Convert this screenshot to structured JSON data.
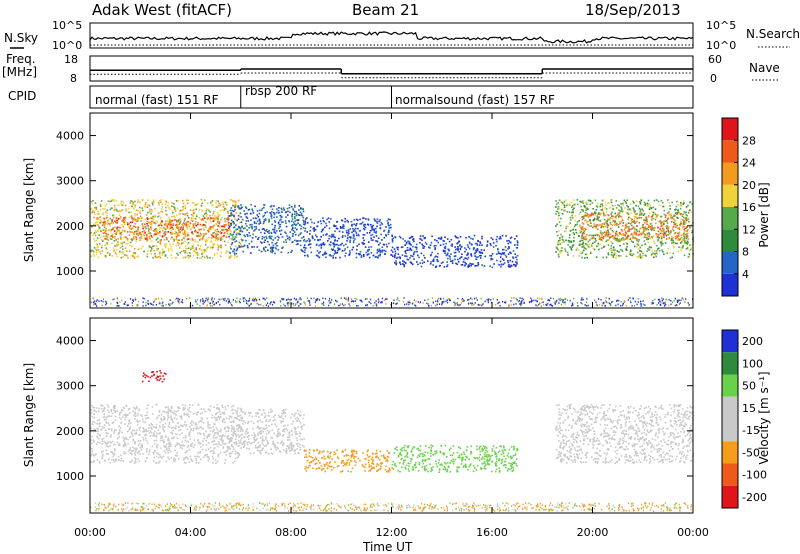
{
  "header": {
    "title": "Adak West (fitACF)",
    "beam": "Beam 21",
    "date": "18/Sep/2013"
  },
  "colors": {
    "power": [
      "#1f31d6",
      "#2466c7",
      "#2f8a3c",
      "#58a94c",
      "#f0d23a",
      "#f39a1f",
      "#ef5a1a",
      "#e0151b"
    ],
    "velocity": [
      "#e0151b",
      "#ef5a1a",
      "#f59d1b",
      "#c9c9c9",
      "#c9c9c9",
      "#6ad14a",
      "#2f8a3c",
      "#1f31d6"
    ]
  },
  "chart_data": [
    {
      "type": "line",
      "name": "summary",
      "left_labels": {
        "nsky": "N.Sky",
        "freq": "Freq.",
        "freq_unit": "[MHz]",
        "cpid": "CPID"
      },
      "right_labels": {
        "nsearch": "N.Search",
        "nave": "Nave"
      },
      "nsky_ticks": [
        "10^5",
        "10^0"
      ],
      "nsearch_ticks": [
        "10^5",
        "10^0"
      ],
      "freq_ticks": [
        "18",
        "8"
      ],
      "nave_ticks": [
        "60",
        "0"
      ],
      "freq_steps": [
        {
          "start": 0,
          "end": 6,
          "value": 12.3
        },
        {
          "start": 6,
          "end": 10,
          "value": 12.8
        },
        {
          "start": 10,
          "end": 18,
          "value": 10.9
        },
        {
          "start": 18,
          "end": 24,
          "value": 12.8
        }
      ],
      "cpid": [
        {
          "start": 0,
          "end": 6,
          "label": "normal (fast) 151 RF"
        },
        {
          "start": 6,
          "end": 12,
          "label": "rbsp 200 RF"
        },
        {
          "start": 12,
          "end": 24,
          "label": "normalsound (fast) 157 RF"
        }
      ]
    },
    {
      "type": "heatmap",
      "name": "power",
      "ylabel": "Slant Range [km]",
      "xlabel": "Time UT",
      "xlim": [
        0,
        24
      ],
      "ylim": [
        180,
        4500
      ],
      "yticks": [
        1000,
        2000,
        3000,
        4000
      ],
      "xticks": [
        "00:00",
        "04:00",
        "08:00",
        "12:00",
        "16:00",
        "20:00",
        "00:00"
      ],
      "colorbar": {
        "label": "Power [dB]",
        "ticks": [
          4,
          8,
          12,
          16,
          20,
          24,
          28
        ]
      },
      "regions": [
        {
          "t0": 0.0,
          "t1": 6.0,
          "r0": 1300,
          "r1": 2600,
          "level": 20
        },
        {
          "t0": 0.5,
          "t1": 5.5,
          "r0": 1700,
          "r1": 2200,
          "level": 27
        },
        {
          "t0": 5.5,
          "t1": 8.5,
          "r0": 1400,
          "r1": 2500,
          "level": 8
        },
        {
          "t0": 8.5,
          "t1": 12.0,
          "r0": 1300,
          "r1": 2200,
          "level": 6
        },
        {
          "t0": 12.0,
          "t1": 17.0,
          "r0": 1100,
          "r1": 1800,
          "level": 5
        },
        {
          "t0": 18.5,
          "t1": 24.0,
          "r0": 1300,
          "r1": 2600,
          "level": 16
        },
        {
          "t0": 19.5,
          "t1": 23.8,
          "r0": 1700,
          "r1": 2300,
          "level": 26
        }
      ]
    },
    {
      "type": "heatmap",
      "name": "velocity",
      "ylabel": "Slant Range [km]",
      "xlabel": "Time UT",
      "xlim": [
        0,
        24
      ],
      "ylim": [
        180,
        4500
      ],
      "yticks": [
        1000,
        2000,
        3000,
        4000
      ],
      "xticks": [
        "00:00",
        "04:00",
        "08:00",
        "12:00",
        "16:00",
        "20:00",
        "00:00"
      ],
      "colorbar": {
        "label": "Velocity [m s⁻¹]",
        "ticks": [
          "200",
          "100",
          "50",
          "15",
          "-15",
          "-50",
          "-100",
          "-200"
        ]
      },
      "regions": [
        {
          "t0": 0.0,
          "t1": 6.0,
          "r0": 1300,
          "r1": 2600,
          "level": 0
        },
        {
          "t0": 5.5,
          "t1": 8.5,
          "r0": 1500,
          "r1": 2500,
          "level": 0
        },
        {
          "t0": 8.5,
          "t1": 12.0,
          "r0": 1100,
          "r1": 1600,
          "level": -40
        },
        {
          "t0": 12.0,
          "t1": 17.0,
          "r0": 1100,
          "r1": 1700,
          "level": 40
        },
        {
          "t0": 18.5,
          "t1": 24.0,
          "r0": 1300,
          "r1": 2600,
          "level": 0
        },
        {
          "t0": 2.0,
          "t1": 3.0,
          "r0": 3100,
          "r1": 3350,
          "level": -200
        }
      ]
    }
  ]
}
